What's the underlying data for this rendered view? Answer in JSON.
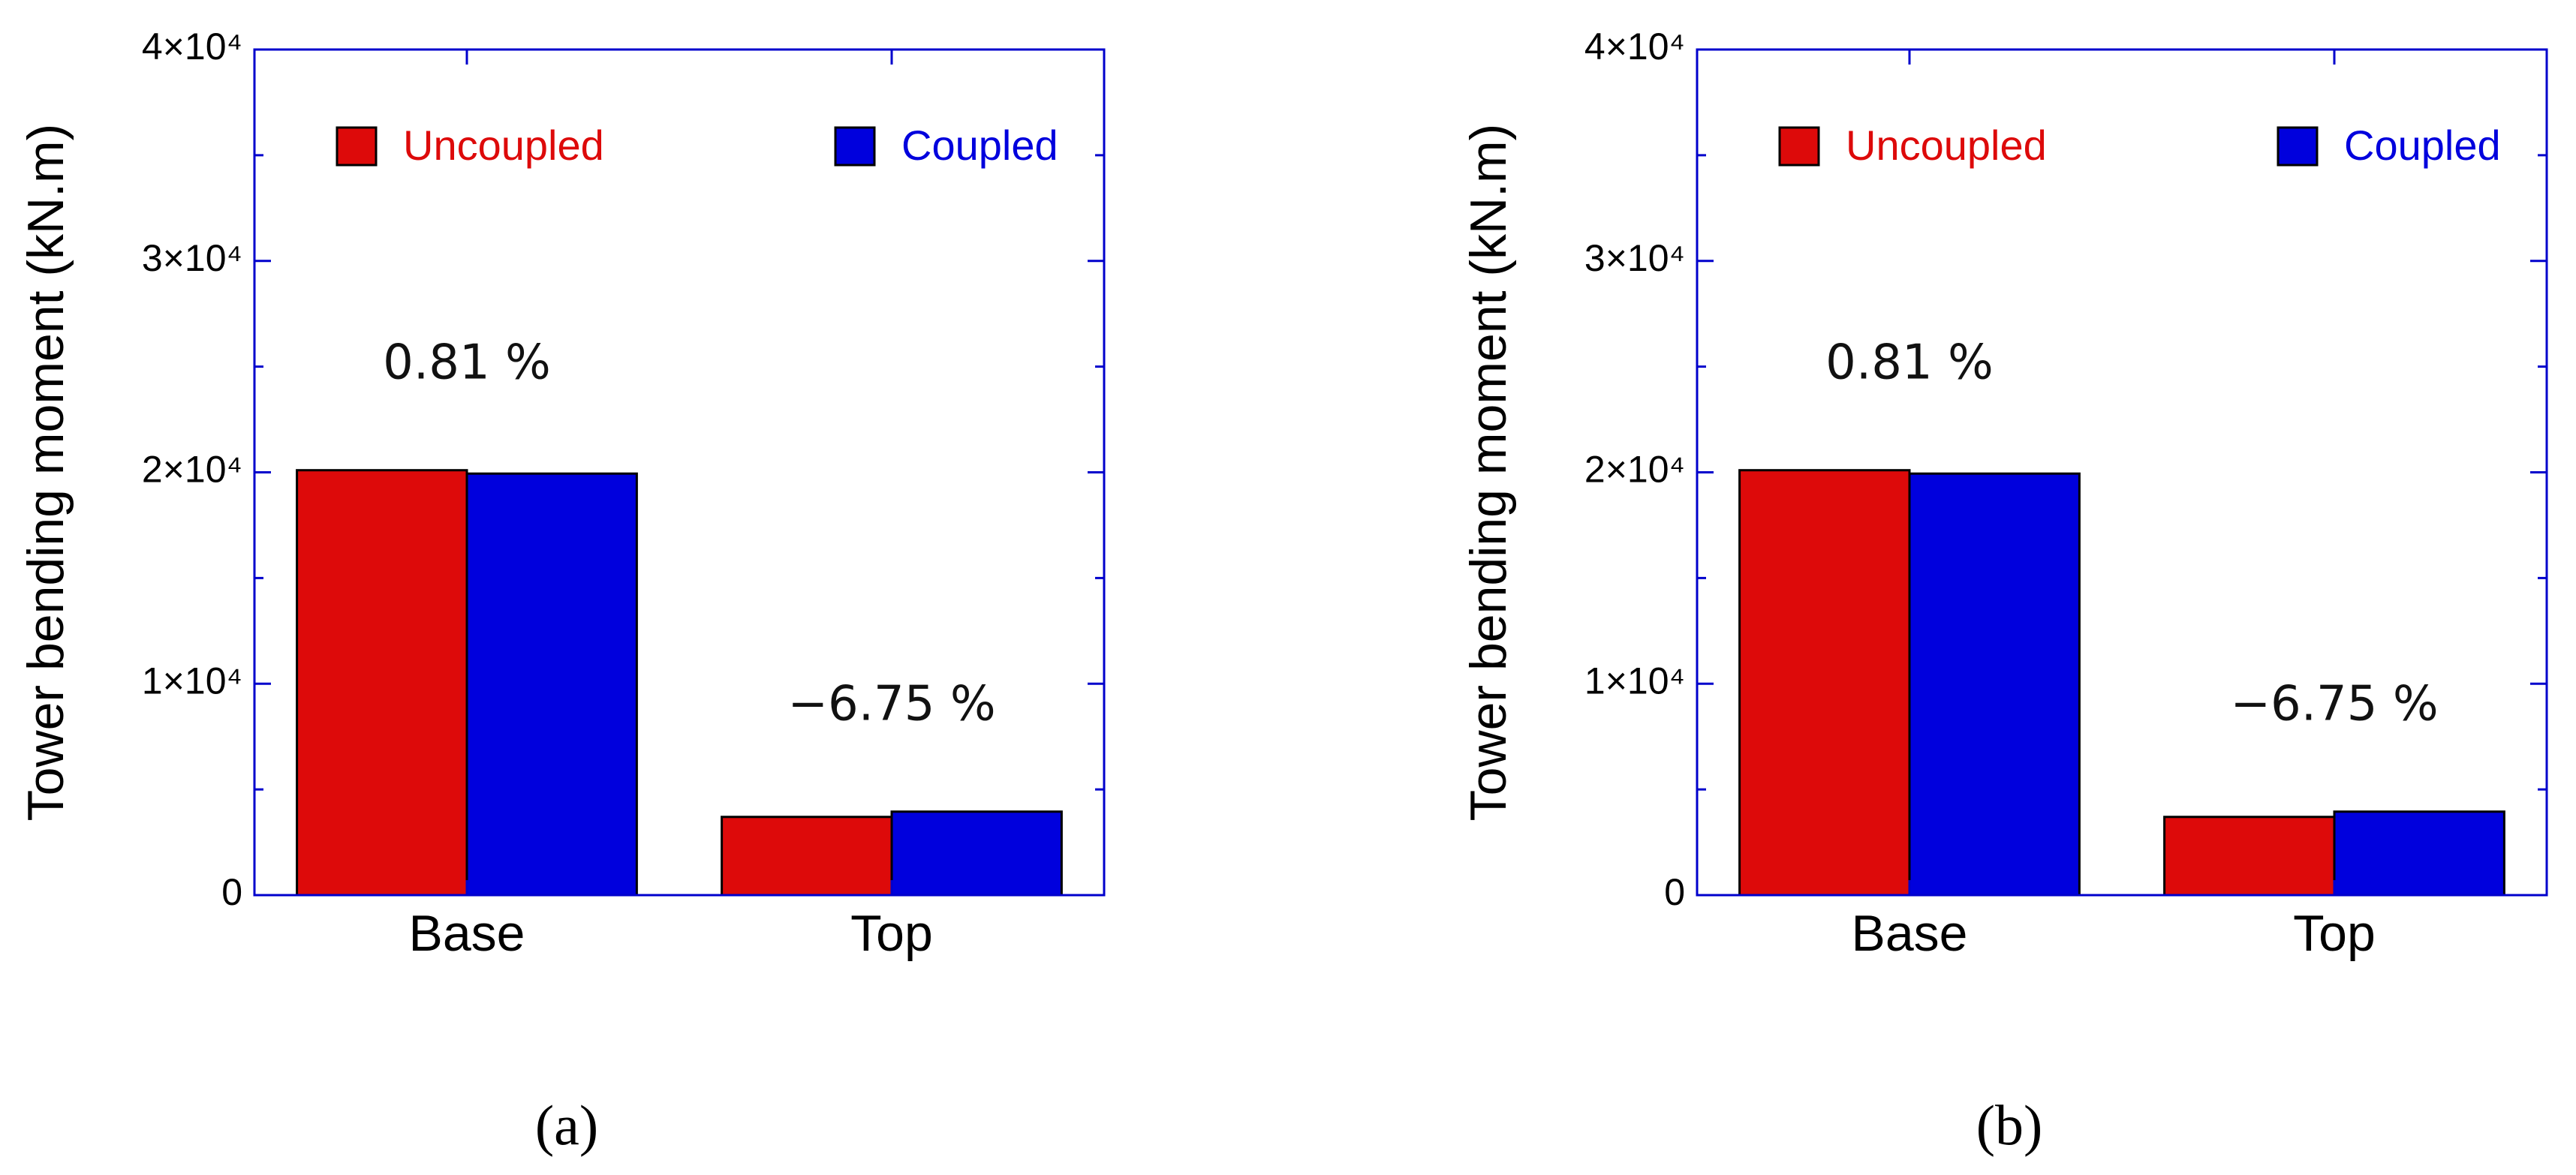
{
  "chart_data": [
    {
      "type": "bar",
      "y_label": "Tower bending moment (kN.m)",
      "categories": [
        "Base",
        "Top"
      ],
      "series": [
        {
          "name": "Uncoupled",
          "color": "#dd0a0a",
          "values": [
            20100,
            3700
          ]
        },
        {
          "name": "Coupled",
          "color": "#0000dd",
          "values": [
            19940,
            3950
          ]
        }
      ],
      "annotations": [
        "0.81 %",
        "−6.75 %"
      ],
      "ylim": [
        0,
        40000
      ],
      "yticks": [
        0,
        {
          "value": 10000,
          "label": "1×10⁴"
        },
        {
          "value": 20000,
          "label": "2×10⁴"
        },
        {
          "value": 30000,
          "label": "3×10⁴"
        },
        {
          "value": 40000,
          "label": "4×10⁴"
        }
      ],
      "yticks_minor": [
        5000,
        15000,
        25000,
        35000
      ],
      "axis_color": "#0000cc",
      "legend": "top",
      "subfigure_label": "(a)"
    },
    {
      "type": "bar",
      "y_label": "Tower bending moment (kN.m)",
      "categories": [
        "Base",
        "Top"
      ],
      "series": [
        {
          "name": "Uncoupled",
          "color": "#dd0a0a",
          "values": [
            20100,
            3700
          ]
        },
        {
          "name": "Coupled",
          "color": "#0000dd",
          "values": [
            19940,
            3950
          ]
        }
      ],
      "annotations": [
        "0.81 %",
        "−6.75 %"
      ],
      "ylim": [
        0,
        40000
      ],
      "yticks": [
        0,
        {
          "value": 10000,
          "label": "1×10⁴"
        },
        {
          "value": 20000,
          "label": "2×10⁴"
        },
        {
          "value": 30000,
          "label": "3×10⁴"
        },
        {
          "value": 40000,
          "label": "4×10⁴"
        }
      ],
      "yticks_minor": [
        5000,
        15000,
        25000,
        35000
      ],
      "axis_color": "#0000cc",
      "legend": "top",
      "subfigure_label": "(b)"
    }
  ]
}
